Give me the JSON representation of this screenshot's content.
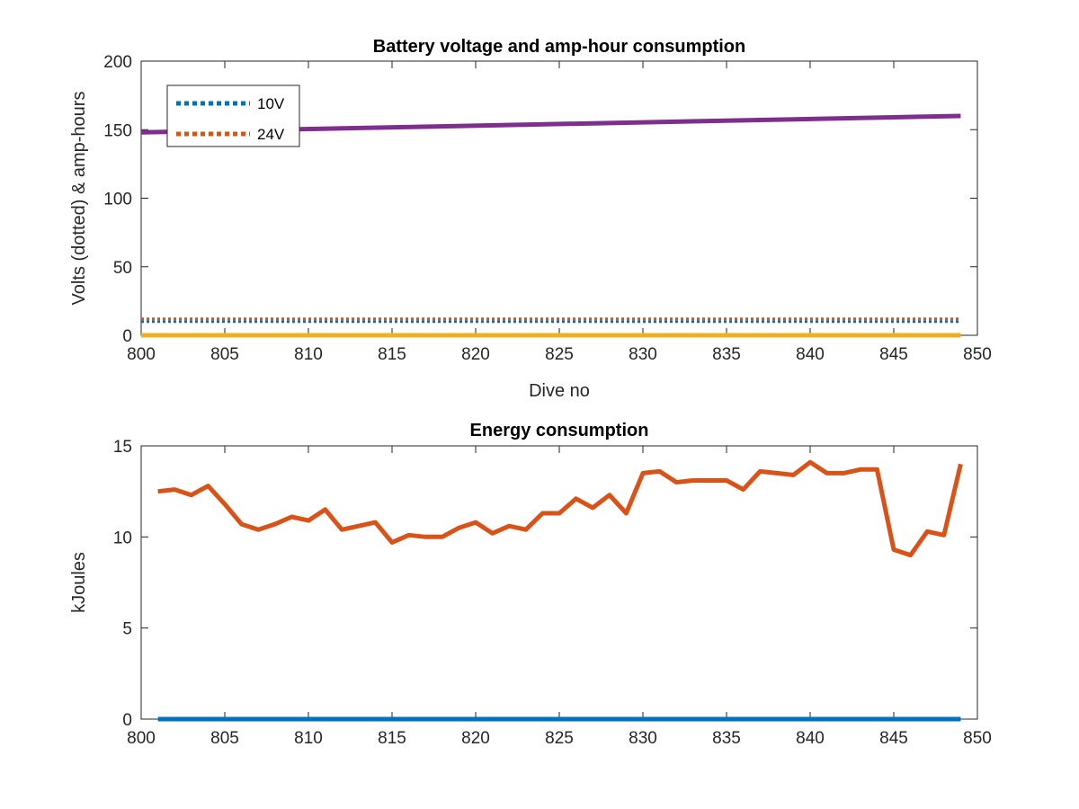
{
  "chart_data": [
    {
      "type": "line",
      "title": "Battery voltage and amp-hour consumption",
      "xlabel": "Dive no",
      "ylabel": "Volts (dotted) & amp-hours",
      "xlim": [
        800,
        850
      ],
      "ylim": [
        0,
        200
      ],
      "xticks": [
        800,
        805,
        810,
        815,
        820,
        825,
        830,
        835,
        840,
        845,
        850
      ],
      "yticks": [
        0,
        50,
        100,
        150,
        200
      ],
      "legend": {
        "position": "top-left",
        "entries": [
          "10V",
          "24V"
        ]
      },
      "grid": false,
      "series": [
        {
          "name": "10V",
          "style": "dotted",
          "color": "#0072BD",
          "x": [
            800,
            849
          ],
          "y": [
            10,
            10
          ]
        },
        {
          "name": "24V",
          "style": "dotted",
          "color": "#D95319",
          "x": [
            800,
            849
          ],
          "y": [
            12,
            12
          ]
        },
        {
          "style": "solid",
          "color": "#7E2F8E",
          "x": [
            800,
            849
          ],
          "y": [
            148,
            160
          ]
        },
        {
          "style": "solid",
          "color": "#EDB120",
          "x": [
            800,
            849
          ],
          "y": [
            0,
            0
          ]
        }
      ]
    },
    {
      "type": "line",
      "title": "Energy consumption",
      "xlabel": "",
      "ylabel": "kJoules",
      "xlim": [
        800,
        850
      ],
      "ylim": [
        0,
        15
      ],
      "xticks": [
        800,
        805,
        810,
        815,
        820,
        825,
        830,
        835,
        840,
        845,
        850
      ],
      "yticks": [
        0,
        5,
        10,
        15
      ],
      "grid": false,
      "series": [
        {
          "style": "solid",
          "color": "#D95319",
          "x": [
            801,
            802,
            803,
            804,
            805,
            806,
            807,
            808,
            809,
            810,
            811,
            812,
            813,
            814,
            815,
            816,
            817,
            818,
            819,
            820,
            821,
            822,
            823,
            824,
            825,
            826,
            827,
            828,
            829,
            830,
            831,
            832,
            833,
            834,
            835,
            836,
            837,
            838,
            839,
            840,
            841,
            842,
            843,
            844,
            845,
            846,
            847,
            848,
            849
          ],
          "y": [
            12.5,
            12.6,
            12.3,
            12.8,
            11.8,
            10.7,
            10.4,
            10.7,
            11.1,
            10.9,
            11.5,
            10.4,
            10.6,
            10.8,
            9.7,
            10.1,
            10.0,
            10.0,
            10.5,
            10.8,
            10.2,
            10.6,
            10.4,
            11.3,
            11.3,
            12.1,
            11.6,
            12.3,
            11.3,
            13.5,
            13.6,
            13.0,
            13.1,
            13.1,
            13.1,
            12.6,
            13.6,
            13.5,
            13.4,
            14.1,
            13.5,
            13.5,
            13.7,
            13.7,
            9.3,
            9.0,
            10.3,
            10.1,
            14.0
          ]
        },
        {
          "style": "solid",
          "color": "#0072BD",
          "x": [
            801,
            849
          ],
          "y": [
            0,
            0
          ]
        }
      ]
    }
  ]
}
